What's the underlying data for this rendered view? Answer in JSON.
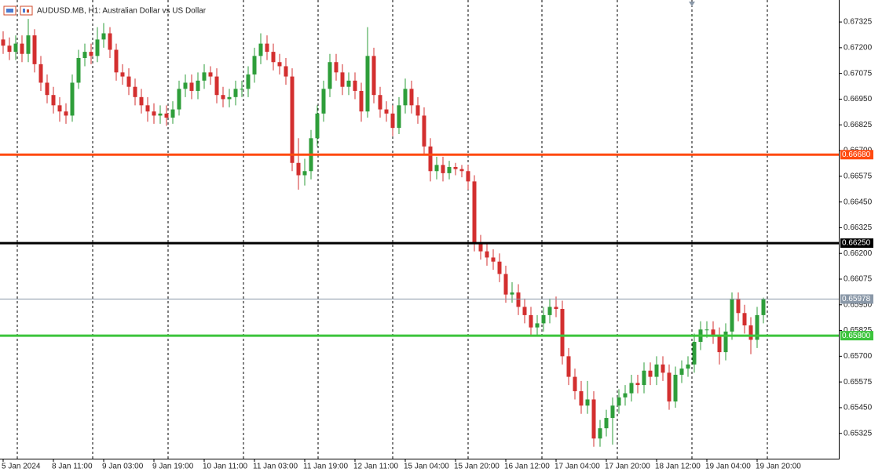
{
  "chart_data": {
    "type": "candlestick",
    "title": "AUDUSD.MB, H1:  Australian Dollar vs US Dollar",
    "up_color": "#2e9e3a",
    "down_color": "#d32f2f",
    "ylim": [
      0.65202,
      0.67432
    ],
    "yticks": [
      0.67325,
      {
        "value": 0.672,
        "label": "0.67200"
      },
      0.67075,
      {
        "value": 0.6695,
        "label": "0.66950"
      },
      0.66825,
      {
        "value": 0.667,
        "label": "0.66700"
      },
      0.66575,
      {
        "value": 0.6645,
        "label": "0.66450"
      },
      0.66325,
      {
        "value": 0.662,
        "label": "0.66200"
      },
      0.66075,
      {
        "value": 0.6595,
        "label": "0.65950"
      },
      0.65825,
      {
        "value": 0.657,
        "label": "0.65700"
      },
      0.65575,
      {
        "value": 0.6545,
        "label": "0.65450"
      },
      0.65325
    ],
    "levels": [
      {
        "value": 0.6668,
        "label": "0.66680",
        "color": "#ff4a10"
      },
      {
        "value": 0.6625,
        "label": "0.66250",
        "color": "#000000"
      },
      {
        "value": 0.658,
        "label": "0.65800",
        "color": "#3cc43c"
      },
      {
        "value": 0.65978,
        "label": "0.65978",
        "color": "#8a98a8"
      }
    ],
    "categories": [
      "5 Jan 2024",
      null,
      null,
      null,
      null,
      null,
      null,
      null,
      "8 Jan 11:00",
      null,
      null,
      null,
      null,
      null,
      null,
      null,
      "9 Jan 03:00",
      null,
      null,
      null,
      null,
      null,
      null,
      null,
      "9 Jan 19:00",
      null,
      null,
      null,
      null,
      null,
      null,
      null,
      "10 Jan 11:00",
      null,
      null,
      null,
      null,
      null,
      null,
      null,
      "11 Jan 03:00",
      null,
      null,
      null,
      null,
      null,
      null,
      null,
      "11 Jan 19:00",
      null,
      null,
      null,
      null,
      null,
      null,
      null,
      "12 Jan 11:00",
      null,
      null,
      null,
      null,
      null,
      null,
      null,
      "15 Jan 04:00",
      null,
      null,
      null,
      null,
      null,
      null,
      null,
      "15 Jan 20:00",
      null,
      null,
      null,
      null,
      null,
      null,
      null,
      "16 Jan 12:00",
      null,
      null,
      null,
      null,
      null,
      null,
      null,
      "17 Jan 04:00",
      null,
      null,
      null,
      null,
      null,
      null,
      null,
      "17 Jan 20:00",
      null,
      null,
      null,
      null,
      null,
      null,
      null,
      "18 Jan 12:00",
      null,
      null,
      null,
      null,
      null,
      null,
      null,
      "19 Jan 04:00",
      null,
      null,
      null,
      null,
      null,
      null,
      null,
      "19 Jan 20:00",
      null
    ],
    "open": [
      0.6724,
      0.6721,
      0.6718,
      0.6722,
      0.6717,
      0.6726,
      0.6712,
      0.6703,
      0.6697,
      0.6692,
      0.6689,
      0.6687,
      0.6703,
      0.6715,
      0.6718,
      0.6716,
      0.6724,
      0.6727,
      0.6719,
      0.6708,
      0.6706,
      0.6701,
      0.6696,
      0.6692,
      0.6689,
      0.6687,
      0.6688,
      0.6686,
      0.669,
      0.67,
      0.6703,
      0.6699,
      0.6704,
      0.6708,
      0.6706,
      0.6697,
      0.6695,
      0.6696,
      0.67,
      0.67,
      0.6707,
      0.6716,
      0.6722,
      0.6718,
      0.6713,
      0.6711,
      0.6706,
      0.6664,
      0.6658,
      0.666,
      0.6676,
      0.6688,
      0.67,
      0.6713,
      0.6708,
      0.6701,
      0.6704,
      0.6699,
      0.6689,
      0.6716,
      0.6697,
      0.669,
      0.6688,
      0.6681,
      0.6692,
      0.67,
      0.6692,
      0.6687,
      0.6672,
      0.666,
      0.6663,
      0.6659,
      0.6662,
      0.6661,
      0.666,
      0.6655,
      0.6625,
      0.6621,
      0.6618,
      0.6616,
      0.661,
      0.66,
      0.6601,
      0.6594,
      0.659,
      0.6584,
      0.6586,
      0.659,
      0.6594,
      0.6593,
      0.657,
      0.656,
      0.6553,
      0.6546,
      0.6549,
      0.653,
      0.6535,
      0.654,
      0.6546,
      0.655,
      0.6552,
      0.6557,
      0.6556,
      0.6563,
      0.656,
      0.6566,
      0.6562,
      0.6548,
      0.6561,
      0.6564,
      0.6566,
      0.6577,
      0.6583,
      0.6583,
      0.658,
      0.6572,
      0.6582,
      0.6598,
      0.6591,
      0.6585,
      0.6578,
      0.659
    ],
    "high": [
      0.6728,
      0.6725,
      0.6726,
      0.6726,
      0.6734,
      0.6729,
      0.6716,
      0.6707,
      0.6701,
      0.6696,
      0.6693,
      0.6707,
      0.6719,
      0.6722,
      0.6722,
      0.673,
      0.6732,
      0.673,
      0.6722,
      0.6712,
      0.671,
      0.6705,
      0.67,
      0.6696,
      0.6693,
      0.6692,
      0.6692,
      0.6694,
      0.6704,
      0.6707,
      0.6707,
      0.6708,
      0.6712,
      0.6711,
      0.671,
      0.6701,
      0.67,
      0.6704,
      0.6704,
      0.6711,
      0.672,
      0.6727,
      0.6726,
      0.6722,
      0.6717,
      0.6715,
      0.671,
      0.6676,
      0.6666,
      0.668,
      0.6692,
      0.6704,
      0.6717,
      0.6717,
      0.6712,
      0.6708,
      0.6708,
      0.6703,
      0.673,
      0.672,
      0.6701,
      0.6694,
      0.6692,
      0.6696,
      0.6705,
      0.6704,
      0.6696,
      0.6691,
      0.6676,
      0.6667,
      0.6667,
      0.6665,
      0.6664,
      0.6663,
      0.6663,
      0.6658,
      0.6629,
      0.6625,
      0.6622,
      0.662,
      0.6614,
      0.6606,
      0.6605,
      0.6598,
      0.6594,
      0.659,
      0.6594,
      0.6598,
      0.6599,
      0.6597,
      0.6574,
      0.6564,
      0.6558,
      0.6558,
      0.6553,
      0.6539,
      0.6544,
      0.655,
      0.6554,
      0.6556,
      0.6561,
      0.6561,
      0.6567,
      0.6567,
      0.657,
      0.657,
      0.6566,
      0.6565,
      0.6568,
      0.657,
      0.6581,
      0.6587,
      0.6587,
      0.6587,
      0.6584,
      0.6586,
      0.6601,
      0.6601,
      0.6595,
      0.6589,
      0.6594,
      0.65985
    ],
    "low": [
      0.6717,
      0.6714,
      0.6714,
      0.6713,
      0.6713,
      0.6708,
      0.6699,
      0.6693,
      0.6688,
      0.6684,
      0.6683,
      0.6684,
      0.67,
      0.6711,
      0.6712,
      0.6713,
      0.672,
      0.6715,
      0.6704,
      0.6702,
      0.6697,
      0.6692,
      0.6688,
      0.6684,
      0.6683,
      0.6683,
      0.6682,
      0.6683,
      0.6687,
      0.6696,
      0.6695,
      0.6695,
      0.67,
      0.6702,
      0.6693,
      0.6691,
      0.6691,
      0.6692,
      0.6696,
      0.6696,
      0.6703,
      0.6712,
      0.6714,
      0.6709,
      0.6707,
      0.6702,
      0.666,
      0.6651,
      0.6653,
      0.6656,
      0.6672,
      0.6684,
      0.6696,
      0.6704,
      0.6697,
      0.6697,
      0.6695,
      0.6684,
      0.6686,
      0.6693,
      0.6686,
      0.6684,
      0.6677,
      0.6678,
      0.6688,
      0.6688,
      0.6683,
      0.6668,
      0.6655,
      0.6656,
      0.6655,
      0.6656,
      0.6658,
      0.6657,
      0.6651,
      0.6621,
      0.6617,
      0.6614,
      0.6612,
      0.6606,
      0.6596,
      0.6596,
      0.659,
      0.6586,
      0.658,
      0.658,
      0.6582,
      0.6586,
      0.6589,
      0.6566,
      0.6556,
      0.6549,
      0.6542,
      0.6542,
      0.6526,
      0.6526,
      0.6531,
      0.6527,
      0.6542,
      0.6546,
      0.6548,
      0.6552,
      0.6552,
      0.6556,
      0.6556,
      0.6558,
      0.6544,
      0.6545,
      0.6557,
      0.656,
      0.6562,
      0.6573,
      0.6579,
      0.6576,
      0.6566,
      0.6568,
      0.6578,
      0.6587,
      0.6581,
      0.6571,
      0.6574,
      0.6586
    ],
    "close": [
      0.6721,
      0.6718,
      0.6722,
      0.6717,
      0.6726,
      0.6712,
      0.6703,
      0.6697,
      0.6692,
      0.6689,
      0.6687,
      0.6703,
      0.6715,
      0.6718,
      0.6716,
      0.6724,
      0.6727,
      0.6719,
      0.6708,
      0.6706,
      0.6701,
      0.6696,
      0.6692,
      0.6689,
      0.6687,
      0.6688,
      0.6686,
      0.669,
      0.67,
      0.6703,
      0.6699,
      0.6704,
      0.6708,
      0.6706,
      0.6697,
      0.6695,
      0.6696,
      0.67,
      0.67,
      0.6707,
      0.6716,
      0.6722,
      0.6718,
      0.6713,
      0.6711,
      0.6706,
      0.6664,
      0.6658,
      0.666,
      0.6676,
      0.6688,
      0.67,
      0.6713,
      0.6708,
      0.6701,
      0.6704,
      0.6699,
      0.6689,
      0.6716,
      0.6697,
      0.669,
      0.6688,
      0.6681,
      0.6692,
      0.67,
      0.6692,
      0.6687,
      0.6672,
      0.666,
      0.6663,
      0.6659,
      0.6662,
      0.6661,
      0.666,
      0.6655,
      0.6625,
      0.6621,
      0.6618,
      0.6616,
      0.661,
      0.66,
      0.6601,
      0.6594,
      0.659,
      0.6584,
      0.6586,
      0.659,
      0.6594,
      0.6593,
      0.657,
      0.656,
      0.6553,
      0.6546,
      0.6549,
      0.653,
      0.6535,
      0.654,
      0.6546,
      0.655,
      0.6552,
      0.6557,
      0.6556,
      0.6563,
      0.656,
      0.6566,
      0.6562,
      0.6548,
      0.6561,
      0.6564,
      0.6566,
      0.6577,
      0.6583,
      0.6583,
      0.658,
      0.6572,
      0.6582,
      0.6598,
      0.6591,
      0.6585,
      0.6578,
      0.659,
      0.65978
    ]
  }
}
